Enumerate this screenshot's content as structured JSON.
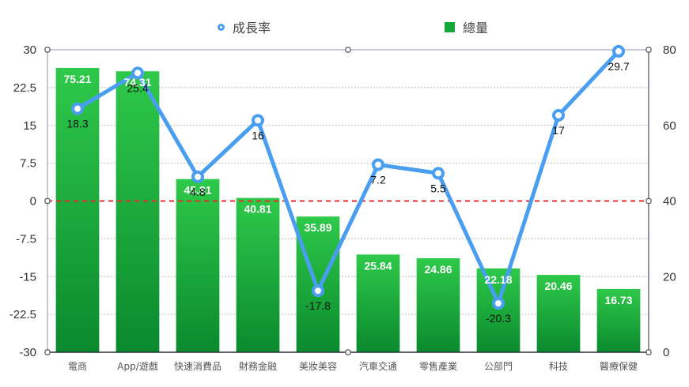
{
  "legend": {
    "line_label": "成長率",
    "bar_label": "總量"
  },
  "colors": {
    "bar_top": "#2ec94a",
    "bar_bottom": "#0a8a2e",
    "line": "#4a9ef0",
    "zero_line": "#e03030",
    "grid": "#bbbbbb",
    "axis": "#8890b0"
  },
  "chart_data": {
    "type": "bar+line",
    "title": "",
    "categories": [
      "電商",
      "App/遊戲",
      "快速消費品",
      "財務金融",
      "美妝美容",
      "汽車交通",
      "零售產業",
      "公部門",
      "科技",
      "醫療保健"
    ],
    "series": [
      {
        "name": "總量",
        "type": "bar",
        "axis": "right",
        "values": [
          75.21,
          74.31,
          45.81,
          40.81,
          35.89,
          25.84,
          24.86,
          22.18,
          20.46,
          16.73
        ]
      },
      {
        "name": "成長率",
        "type": "line",
        "axis": "left",
        "values": [
          18.3,
          25.4,
          4.8,
          16,
          -17.8,
          7.2,
          5.5,
          -20.3,
          17,
          29.7
        ]
      }
    ],
    "left_axis": {
      "ylim": [
        -30,
        30
      ],
      "ticks": [
        "30",
        "22.5",
        "15",
        "7.5",
        "0",
        "-7.5",
        "-15",
        "-22.5",
        "-30"
      ]
    },
    "right_axis": {
      "ylim": [
        0,
        80
      ],
      "ticks": [
        "80",
        "60",
        "40",
        "20",
        "0"
      ]
    },
    "grid": true,
    "legend_position": "top"
  }
}
